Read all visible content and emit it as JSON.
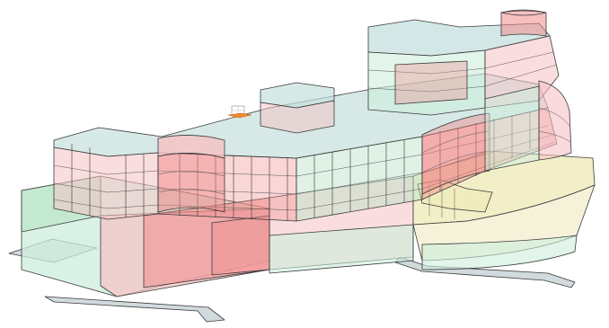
{
  "viewer": {
    "view_mode": "3d-isometric-transparent",
    "colors": {
      "background": "#ffffff",
      "edge": "#3a3a3a",
      "zone_red": "#f08a8a",
      "zone_pink": "#f6c2c4",
      "zone_green": "#b9e3c6",
      "zone_mint": "#cdeedc",
      "zone_yellow": "#eeeab6",
      "zone_cream": "#f3efcf",
      "roof": "#c4e0dd",
      "ground_slab": "#c9d3d6"
    },
    "icons": {
      "view_cube": "view-cube-icon",
      "marker": "origin-marker-icon"
    }
  }
}
